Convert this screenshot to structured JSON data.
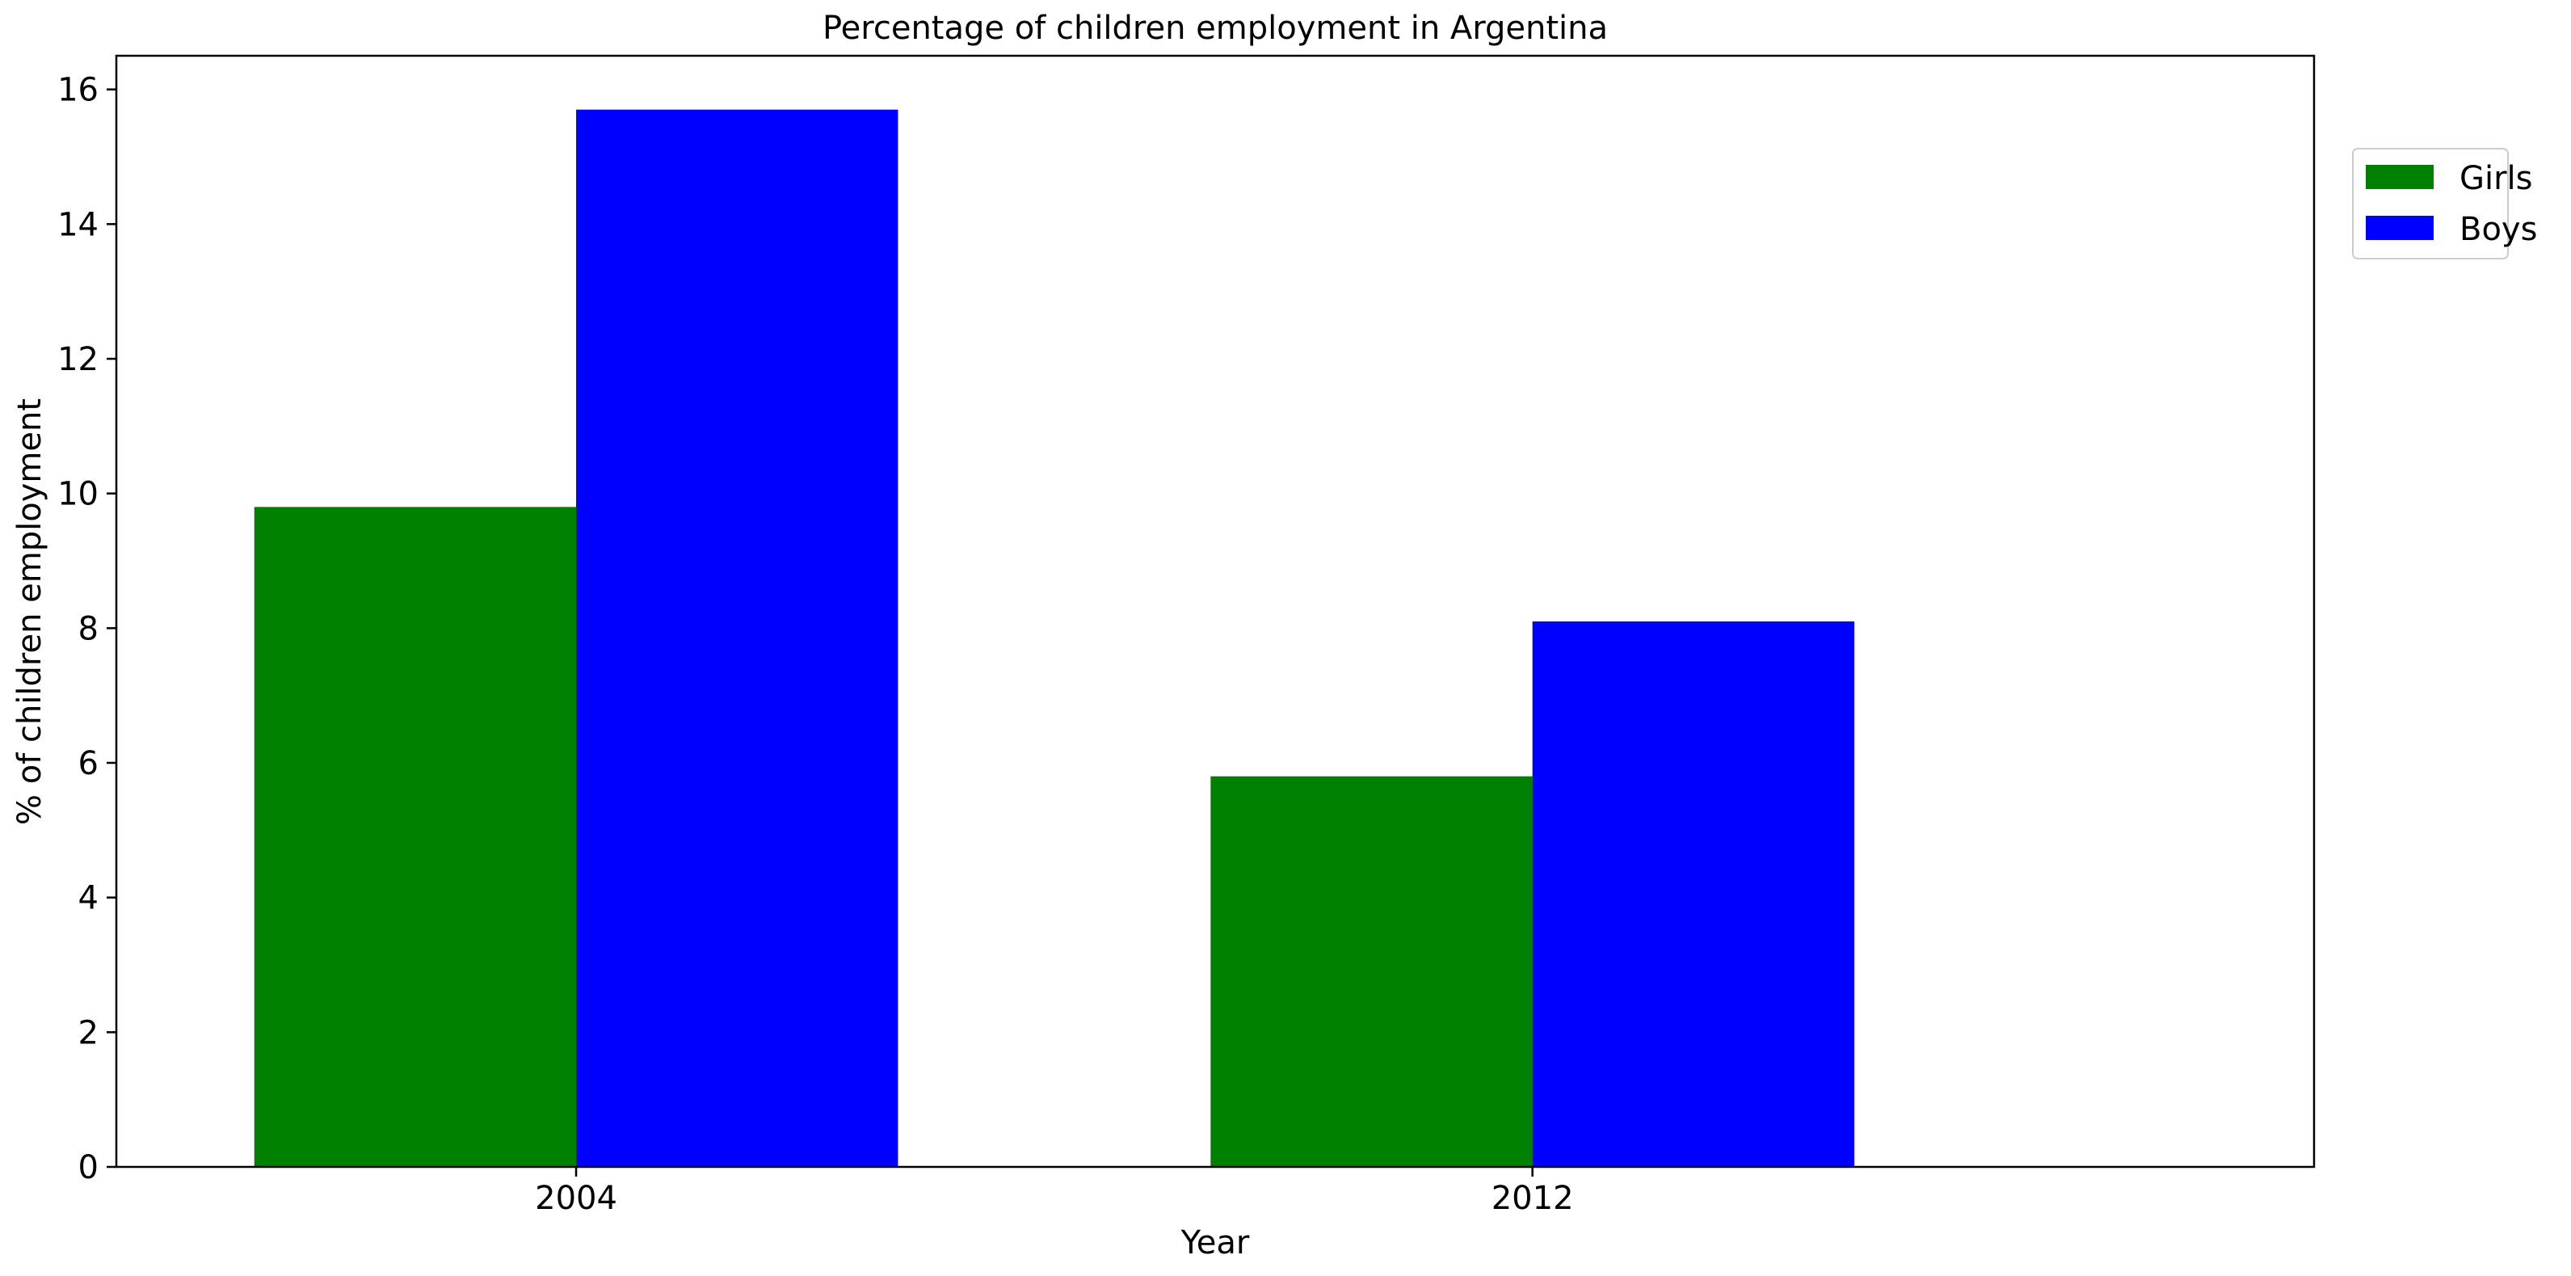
{
  "chart_data": {
    "type": "bar",
    "title": "Percentage of children employment in Argentina",
    "xlabel": "Year",
    "ylabel": "% of children employment",
    "categories": [
      "2004",
      "2012"
    ],
    "series": [
      {
        "name": "Girls",
        "color": "#008000",
        "values": [
          9.8,
          5.8
        ]
      },
      {
        "name": "Boys",
        "color": "#0000ff",
        "values": [
          15.7,
          8.1
        ]
      }
    ],
    "ylim": [
      0,
      16.5
    ],
    "yticks": [
      0,
      2,
      4,
      6,
      8,
      10,
      12,
      14,
      16
    ],
    "grid": false,
    "legend_position": "top-right, outside plot"
  }
}
